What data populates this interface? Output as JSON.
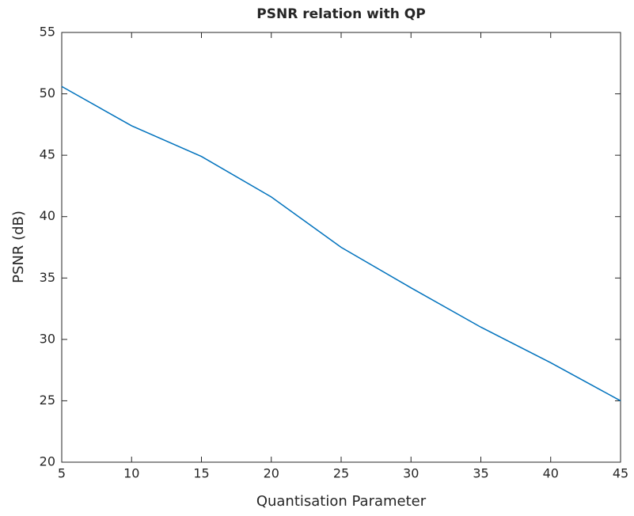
{
  "chart_data": {
    "type": "line",
    "title": "PSNR relation with QP",
    "x_label": "Quantisation Parameter",
    "y_label": "PSNR (dB)",
    "x": [
      5,
      10,
      15,
      20,
      25,
      30,
      35,
      40,
      45
    ],
    "series": [
      {
        "name": "PSNR",
        "color": "#0072bd",
        "values": [
          50.6,
          47.4,
          44.9,
          41.6,
          37.5,
          34.2,
          31.0,
          28.1,
          25.0
        ]
      }
    ],
    "xlim": [
      5,
      45
    ],
    "xticks": [
      5,
      10,
      15,
      20,
      25,
      30,
      35,
      40,
      45
    ],
    "ylim": [
      20,
      55
    ],
    "yticks": [
      20,
      25,
      30,
      35,
      40,
      45,
      50,
      55
    ],
    "grid": false
  }
}
